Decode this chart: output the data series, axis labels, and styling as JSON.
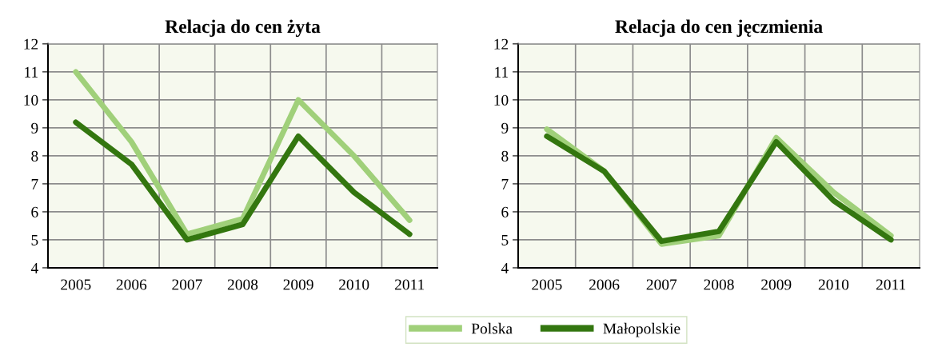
{
  "chart_data": [
    {
      "type": "line",
      "title": "Relacja do cen żyta",
      "categories": [
        "2005",
        "2006",
        "2007",
        "2008",
        "2009",
        "2010",
        "2011"
      ],
      "ylim": [
        4,
        12
      ],
      "yticks": [
        4,
        5,
        6,
        7,
        8,
        9,
        10,
        11,
        12
      ],
      "grid": true,
      "legend": "bottom",
      "line_style": "solid",
      "series": [
        {
          "name": "Polska",
          "color": "#a0d07a",
          "values": [
            11.0,
            8.5,
            5.2,
            5.75,
            10.0,
            8.0,
            5.7
          ]
        },
        {
          "name": "Małopolskie",
          "color": "#33760f",
          "values": [
            9.2,
            7.7,
            5.0,
            5.55,
            8.7,
            6.7,
            5.2
          ]
        }
      ]
    },
    {
      "type": "line",
      "title": "Relacja do cen jęczmienia",
      "categories": [
        "2005",
        "2006",
        "2007",
        "2008",
        "2009",
        "2010",
        "2011"
      ],
      "ylim": [
        4,
        12
      ],
      "yticks": [
        4,
        5,
        6,
        7,
        8,
        9,
        10,
        11,
        12
      ],
      "grid": true,
      "line_style": "solid",
      "series": [
        {
          "color": "#a0d07a",
          "values": [
            8.95,
            7.45,
            4.85,
            5.15,
            8.65,
            6.7,
            5.15
          ]
        },
        {
          "color": "#33760f",
          "values": [
            8.7,
            7.45,
            4.95,
            5.3,
            8.5,
            6.4,
            5.0
          ]
        }
      ]
    }
  ]
}
